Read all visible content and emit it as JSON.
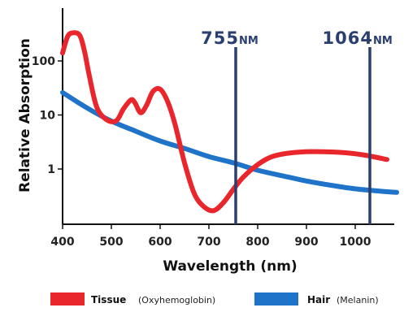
{
  "chart_data": {
    "type": "line",
    "title": "",
    "xlabel": "Wavelength (nm)",
    "ylabel": "Relative Absorption",
    "xlim": [
      400,
      1100
    ],
    "ylim": [
      0.2,
      1000
    ],
    "yscale": "log",
    "x_ticks": [
      400,
      500,
      600,
      700,
      800,
      900,
      1000
    ],
    "y_ticks": [
      1,
      10,
      100
    ],
    "series": [
      {
        "name": "Tissue",
        "name_suffix": "(Oxyhemoglobin)",
        "color": "#e8262b",
        "x": [
          400,
          410,
          420,
          435,
          445,
          455,
          470,
          490,
          510,
          525,
          540,
          548,
          560,
          572,
          585,
          600,
          615,
          630,
          650,
          670,
          690,
          710,
          730,
          750,
          770,
          800,
          830,
          870,
          920,
          980,
          1020,
          1065
        ],
        "y": [
          140,
          280,
          330,
          300,
          150,
          52,
          14,
          8.2,
          7.8,
          13,
          19,
          17,
          11,
          15,
          27,
          30,
          18,
          7,
          1.3,
          0.35,
          0.2,
          0.17,
          0.24,
          0.42,
          0.7,
          1.2,
          1.7,
          2.0,
          2.1,
          2.0,
          1.8,
          1.5
        ]
      },
      {
        "name": "Hair",
        "name_suffix": "(Melanin)",
        "color": "#1f73c9",
        "x": [
          400,
          450,
          500,
          550,
          600,
          650,
          700,
          750,
          800,
          850,
          900,
          950,
          1000,
          1050,
          1085
        ],
        "y": [
          26,
          13.5,
          7.7,
          5.0,
          3.3,
          2.4,
          1.7,
          1.3,
          0.95,
          0.75,
          0.6,
          0.5,
          0.43,
          0.39,
          0.37
        ]
      }
    ],
    "markers": [
      {
        "number": "755",
        "unit": "NM",
        "pos_x": 755
      },
      {
        "number": "1064",
        "unit": "NM",
        "pos_x": 1030
      }
    ],
    "legend": "bottom",
    "grid": false
  },
  "colors": {
    "marker_line": "#2a3f6f",
    "axis": "#111111"
  }
}
